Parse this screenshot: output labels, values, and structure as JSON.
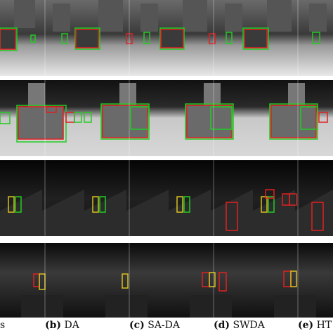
{
  "figure": {
    "captions": [
      {
        "tag": "",
        "text": "s"
      },
      {
        "tag": "(b)",
        "text": "DA"
      },
      {
        "tag": "(c)",
        "text": "SA-DA"
      },
      {
        "tag": "(d)",
        "text": "SWDA"
      },
      {
        "tag": "(e)",
        "text": "HT"
      }
    ],
    "box_colors": {
      "green": "#22cc22",
      "red": "#e02020",
      "yellow": "#d8c020"
    },
    "rows": [
      {
        "theme": "bright-street-cars"
      },
      {
        "theme": "bright-parking-cars"
      },
      {
        "theme": "dark-night-pedestrians"
      },
      {
        "theme": "dark-road-pedestrians"
      }
    ]
  }
}
